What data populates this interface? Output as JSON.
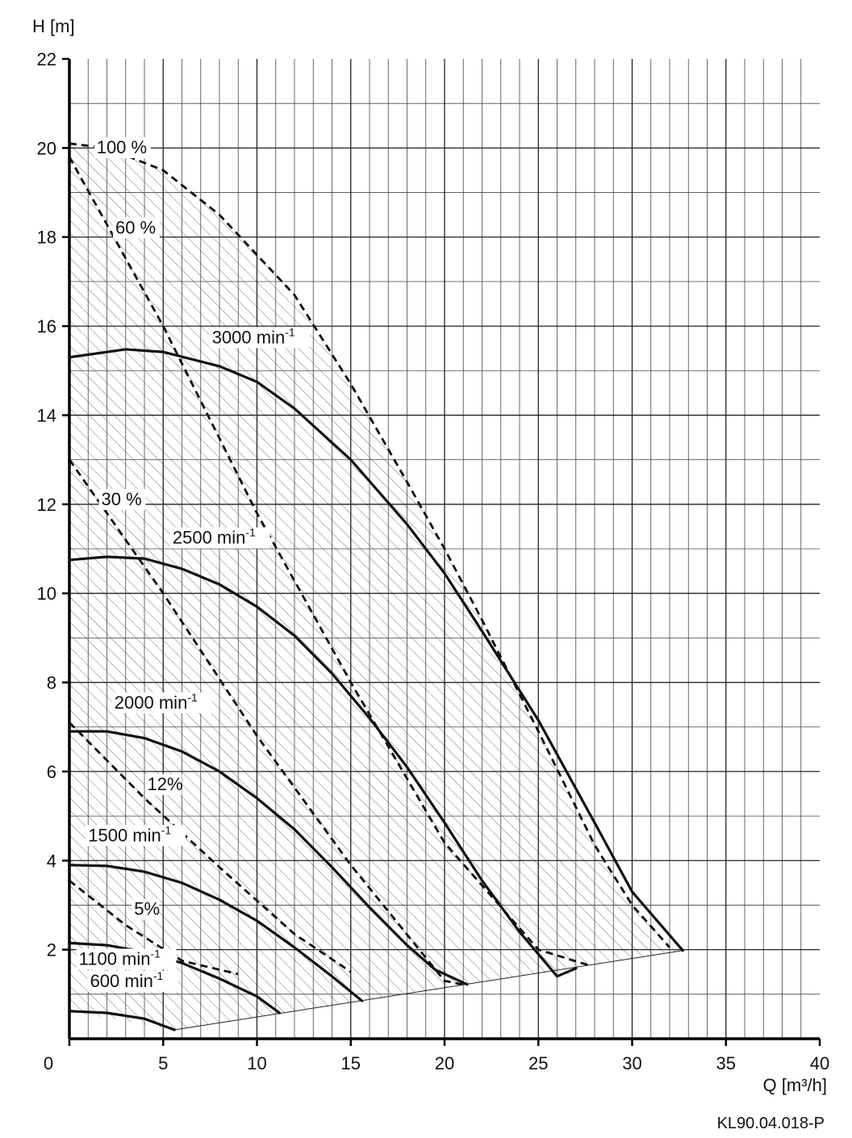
{
  "chart_data": {
    "type": "line",
    "xlabel": "Q [m³/h]",
    "ylabel": "H [m]",
    "xlim": [
      0,
      40
    ],
    "ylim": [
      0,
      22
    ],
    "x_ticks": [
      "0",
      "5",
      "10",
      "15",
      "20",
      "25",
      "30",
      "35",
      "40"
    ],
    "y_ticks": [
      "2",
      "4",
      "6",
      "8",
      "10",
      "12",
      "14",
      "16",
      "18",
      "20",
      "22"
    ],
    "grid": true,
    "minor_grid": {
      "x_step": 1,
      "y_step": 1
    },
    "reference": "KL90.04.018-P",
    "speed_curves": [
      {
        "name": "3000",
        "unit": "min",
        "exp": "-1",
        "points": [
          [
            0,
            15.3
          ],
          [
            3,
            15.48
          ],
          [
            5,
            15.42
          ],
          [
            8,
            15.1
          ],
          [
            10,
            14.75
          ],
          [
            12,
            14.15
          ],
          [
            15,
            13.0
          ],
          [
            18,
            11.55
          ],
          [
            20,
            10.45
          ],
          [
            22,
            9.15
          ],
          [
            25,
            7.15
          ],
          [
            28,
            4.85
          ],
          [
            30,
            3.3
          ],
          [
            32.7,
            1.98
          ]
        ]
      },
      {
        "name": "2500",
        "unit": "min",
        "exp": "-1",
        "points": [
          [
            0,
            10.75
          ],
          [
            2,
            10.82
          ],
          [
            4,
            10.78
          ],
          [
            6,
            10.55
          ],
          [
            8,
            10.2
          ],
          [
            10,
            9.7
          ],
          [
            12,
            9.05
          ],
          [
            14,
            8.2
          ],
          [
            16,
            7.2
          ],
          [
            18,
            6.1
          ],
          [
            20,
            4.85
          ],
          [
            22,
            3.55
          ],
          [
            24,
            2.4
          ],
          [
            26,
            1.4
          ],
          [
            27,
            1.58
          ]
        ]
      },
      {
        "name": "2000",
        "unit": "min",
        "exp": "-1",
        "points": [
          [
            0,
            6.9
          ],
          [
            2,
            6.9
          ],
          [
            4,
            6.75
          ],
          [
            6,
            6.45
          ],
          [
            8,
            6.0
          ],
          [
            10,
            5.4
          ],
          [
            12,
            4.7
          ],
          [
            14,
            3.85
          ],
          [
            16,
            2.95
          ],
          [
            18,
            2.1
          ],
          [
            19.5,
            1.55
          ],
          [
            21.2,
            1.22
          ]
        ]
      },
      {
        "name": "1500",
        "unit": "min",
        "exp": "-1",
        "points": [
          [
            0,
            3.9
          ],
          [
            2,
            3.88
          ],
          [
            4,
            3.75
          ],
          [
            6,
            3.5
          ],
          [
            8,
            3.12
          ],
          [
            10,
            2.65
          ],
          [
            12,
            2.05
          ],
          [
            14,
            1.4
          ],
          [
            15.6,
            0.85
          ]
        ]
      },
      {
        "name": "1100",
        "unit": "min",
        "exp": "-1",
        "points": [
          [
            0,
            2.15
          ],
          [
            2,
            2.1
          ],
          [
            4,
            1.95
          ],
          [
            6,
            1.7
          ],
          [
            8,
            1.35
          ],
          [
            10,
            0.95
          ],
          [
            11.2,
            0.58
          ]
        ]
      },
      {
        "name": "600",
        "unit": "min",
        "exp": "-1",
        "points": [
          [
            0,
            0.62
          ],
          [
            2,
            0.58
          ],
          [
            4,
            0.45
          ],
          [
            5.6,
            0.2
          ]
        ]
      }
    ],
    "efficiency_curves": [
      {
        "name": "100 %",
        "points": [
          [
            0,
            20.1
          ],
          [
            2,
            20.0
          ],
          [
            5,
            19.5
          ],
          [
            8,
            18.5
          ],
          [
            10,
            17.6
          ],
          [
            12,
            16.7
          ],
          [
            15,
            14.7
          ],
          [
            18,
            12.5
          ],
          [
            20,
            11.0
          ],
          [
            22,
            9.4
          ],
          [
            25,
            6.9
          ],
          [
            28,
            4.35
          ],
          [
            30,
            3.0
          ],
          [
            32,
            2.05
          ]
        ]
      },
      {
        "name": "60 %",
        "points": [
          [
            0,
            19.8
          ],
          [
            5,
            16.0
          ],
          [
            10,
            11.8
          ],
          [
            15,
            8.0
          ],
          [
            20,
            4.4
          ],
          [
            25,
            2.0
          ],
          [
            27.7,
            1.65
          ]
        ]
      },
      {
        "name": "30 %",
        "points": [
          [
            0,
            13.0
          ],
          [
            5,
            10.0
          ],
          [
            10,
            6.8
          ],
          [
            15,
            3.9
          ],
          [
            20,
            1.3
          ],
          [
            21.2,
            1.2
          ]
        ]
      },
      {
        "name": "12%",
        "points": [
          [
            0,
            7.1
          ],
          [
            4,
            5.4
          ],
          [
            8,
            3.85
          ],
          [
            12,
            2.35
          ],
          [
            15,
            1.5
          ]
        ]
      },
      {
        "name": "5%",
        "points": [
          [
            0,
            3.55
          ],
          [
            3,
            2.55
          ],
          [
            6,
            1.75
          ],
          [
            9,
            1.45
          ]
        ]
      }
    ],
    "hatched_region": [
      [
        0,
        20.1
      ],
      [
        2,
        20.0
      ],
      [
        5,
        19.5
      ],
      [
        8,
        18.5
      ],
      [
        10,
        17.6
      ],
      [
        12,
        16.7
      ],
      [
        15,
        14.7
      ],
      [
        18,
        12.5
      ],
      [
        20,
        11.0
      ],
      [
        22,
        9.4
      ],
      [
        25,
        6.9
      ],
      [
        28,
        4.35
      ],
      [
        30,
        3.0
      ],
      [
        32,
        2.05
      ],
      [
        32.7,
        1.98
      ],
      [
        5.6,
        0.2
      ],
      [
        0,
        0.62
      ]
    ],
    "lower_boundary": [
      [
        5.6,
        0.2
      ],
      [
        32.7,
        1.98
      ]
    ]
  }
}
